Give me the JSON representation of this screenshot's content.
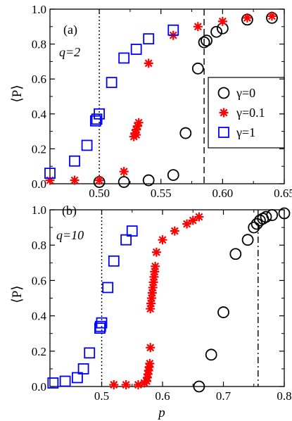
{
  "chart_data": [
    {
      "panel_label": "(a)",
      "type": "scatter",
      "annotation": "q=2",
      "xlabel": "",
      "ylabel": "⟨P⟩",
      "xlim": [
        0.46,
        0.65
      ],
      "ylim": [
        0.0,
        1.0
      ],
      "x_ticks": [
        0.5,
        0.55,
        0.6,
        0.65
      ],
      "x_tick_labels": [
        "0.50",
        "0.55",
        "0.60",
        "0.65"
      ],
      "y_ticks": [
        0.0,
        0.2,
        0.4,
        0.6,
        0.8,
        1.0
      ],
      "y_tick_labels": [
        "0.0",
        "0.2",
        "0.4",
        "0.6",
        "0.8",
        "1.0"
      ],
      "legend": {
        "placement": "right",
        "entries": [
          "γ=0",
          "γ=0.1",
          "γ=1"
        ]
      },
      "reference_lines": [
        {
          "x": 0.5,
          "style": "dotted"
        },
        {
          "x": 0.585,
          "style": "dashed"
        }
      ],
      "series": [
        {
          "name": "γ=0",
          "marker": "open-circle",
          "color": "#000000",
          "points": [
            [
              0.5,
              0.01
            ],
            [
              0.52,
              0.01
            ],
            [
              0.54,
              0.02
            ],
            [
              0.56,
              0.05
            ],
            [
              0.57,
              0.29
            ],
            [
              0.58,
              0.66
            ],
            [
              0.585,
              0.81
            ],
            [
              0.587,
              0.82
            ],
            [
              0.595,
              0.87
            ],
            [
              0.6,
              0.89
            ],
            [
              0.62,
              0.94
            ],
            [
              0.64,
              0.95
            ]
          ]
        },
        {
          "name": "γ=0.1",
          "marker": "asterisk",
          "color": "#ff0000",
          "points": [
            [
              0.46,
              0.02
            ],
            [
              0.48,
              0.02
            ],
            [
              0.5,
              0.02
            ],
            [
              0.52,
              0.07
            ],
            [
              0.528,
              0.27
            ],
            [
              0.529,
              0.29
            ],
            [
              0.53,
              0.31
            ],
            [
              0.531,
              0.33
            ],
            [
              0.532,
              0.35
            ],
            [
              0.53,
              0.28
            ],
            [
              0.54,
              0.69
            ],
            [
              0.56,
              0.85
            ],
            [
              0.58,
              0.9
            ],
            [
              0.6,
              0.93
            ],
            [
              0.62,
              0.95
            ],
            [
              0.64,
              0.96
            ]
          ]
        },
        {
          "name": "γ=1",
          "marker": "open-square",
          "color": "#0000ff",
          "points": [
            [
              0.46,
              0.06
            ],
            [
              0.48,
              0.13
            ],
            [
              0.49,
              0.22
            ],
            [
              0.497,
              0.36
            ],
            [
              0.498,
              0.37
            ],
            [
              0.5,
              0.4
            ],
            [
              0.51,
              0.58
            ],
            [
              0.52,
              0.72
            ],
            [
              0.53,
              0.77
            ],
            [
              0.54,
              0.83
            ],
            [
              0.56,
              0.88
            ]
          ]
        }
      ]
    },
    {
      "panel_label": "(b)",
      "type": "scatter",
      "annotation": "q=10",
      "xlabel": "p",
      "ylabel": "⟨P⟩",
      "xlim": [
        0.415,
        0.8
      ],
      "ylim": [
        0.0,
        1.0
      ],
      "x_ticks": [
        0.5,
        0.6,
        0.7,
        0.8
      ],
      "x_tick_labels": [
        "0.5",
        "0.6",
        "0.7",
        "0.8"
      ],
      "y_ticks": [
        0.0,
        0.2,
        0.4,
        0.6,
        0.8,
        1.0
      ],
      "y_tick_labels": [
        "0.0",
        "0.2",
        "0.4",
        "0.6",
        "0.8",
        "1.0"
      ],
      "reference_lines": [
        {
          "x": 0.5,
          "style": "dotted"
        },
        {
          "x": 0.757,
          "style": "dash-dot"
        }
      ],
      "series": [
        {
          "name": "γ=0",
          "marker": "open-circle",
          "color": "#000000",
          "points": [
            [
              0.66,
              0.0
            ],
            [
              0.68,
              0.18
            ],
            [
              0.7,
              0.42
            ],
            [
              0.72,
              0.75
            ],
            [
              0.74,
              0.83
            ],
            [
              0.75,
              0.9
            ],
            [
              0.755,
              0.92
            ],
            [
              0.76,
              0.94
            ],
            [
              0.765,
              0.95
            ],
            [
              0.77,
              0.96
            ],
            [
              0.78,
              0.97
            ],
            [
              0.8,
              0.98
            ]
          ]
        },
        {
          "name": "γ=0.1",
          "marker": "asterisk",
          "color": "#ff0000",
          "points": [
            [
              0.52,
              0.01
            ],
            [
              0.54,
              0.01
            ],
            [
              0.56,
              0.01
            ],
            [
              0.57,
              0.02
            ],
            [
              0.574,
              0.03
            ],
            [
              0.575,
              0.05
            ],
            [
              0.576,
              0.07
            ],
            [
              0.577,
              0.09
            ],
            [
              0.578,
              0.11
            ],
            [
              0.579,
              0.13
            ],
            [
              0.58,
              0.22
            ],
            [
              0.58,
              0.44
            ],
            [
              0.581,
              0.47
            ],
            [
              0.582,
              0.5
            ],
            [
              0.583,
              0.53
            ],
            [
              0.584,
              0.56
            ],
            [
              0.585,
              0.59
            ],
            [
              0.586,
              0.62
            ],
            [
              0.587,
              0.65
            ],
            [
              0.588,
              0.68
            ],
            [
              0.59,
              0.76
            ],
            [
              0.6,
              0.83
            ],
            [
              0.62,
              0.88
            ],
            [
              0.64,
              0.92
            ],
            [
              0.65,
              0.94
            ],
            [
              0.66,
              0.96
            ]
          ]
        },
        {
          "name": "γ=1",
          "marker": "open-square",
          "color": "#0000ff",
          "points": [
            [
              0.42,
              0.02
            ],
            [
              0.44,
              0.03
            ],
            [
              0.46,
              0.05
            ],
            [
              0.47,
              0.1
            ],
            [
              0.48,
              0.19
            ],
            [
              0.497,
              0.33
            ],
            [
              0.498,
              0.34
            ],
            [
              0.5,
              0.36
            ],
            [
              0.51,
              0.56
            ],
            [
              0.52,
              0.71
            ],
            [
              0.54,
              0.83
            ],
            [
              0.55,
              0.88
            ]
          ]
        }
      ]
    }
  ]
}
